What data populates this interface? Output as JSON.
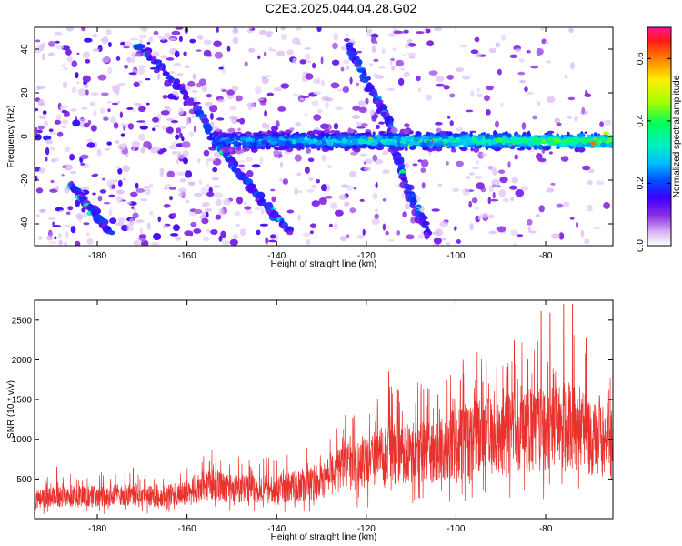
{
  "title": "C2E3.2025.044.04.28.G02",
  "colors": {
    "snr_line": "#e8322e",
    "axis": "#000000",
    "colormap": [
      "#ffffff",
      "#c8a0f0",
      "#8a2be2",
      "#4b00ff",
      "#0000ff",
      "#00bfff",
      "#00ff7f",
      "#7fff00",
      "#ffff00",
      "#ff8c00",
      "#ff0000",
      "#ff1493"
    ]
  },
  "chart_data": [
    {
      "type": "heatmap",
      "xlabel": "Height of straight line (km)",
      "ylabel": "Frequency (Hz)",
      "xlim": [
        -194,
        -65
      ],
      "ylim": [
        -50,
        50
      ],
      "x_ticks": [
        -180,
        -160,
        -140,
        -120,
        -100,
        -80
      ],
      "x_tick_labels": [
        "-180",
        "-160",
        "-140",
        "-120",
        "-100",
        "-80"
      ],
      "y_ticks": [
        -40,
        -20,
        0,
        20,
        40
      ],
      "y_tick_labels": [
        "-40",
        "-20",
        "0",
        "20",
        "40"
      ],
      "features": [
        {
          "name": "main band",
          "x_start": -154,
          "x_end": -65,
          "frequency": -2,
          "max_amplitude": 0.65
        },
        {
          "name": "descending trace 1",
          "points": [
            [
              -171,
              42
            ],
            [
              -161,
              22
            ],
            [
              -154,
              0
            ],
            [
              -150,
              -12
            ],
            [
              -144,
              -28
            ],
            [
              -137,
              -44
            ]
          ]
        },
        {
          "name": "descending trace 2",
          "points": [
            [
              -124,
              42
            ],
            [
              -119,
              22
            ],
            [
              -115,
              8
            ],
            [
              -113,
              -10
            ],
            [
              -110,
              -28
            ],
            [
              -106,
              -46
            ]
          ]
        },
        {
          "name": "lower left trace",
          "points": [
            [
              -186,
              -22
            ],
            [
              -182,
              -32
            ],
            [
              -177,
              -44
            ]
          ]
        }
      ],
      "colorbar": {
        "label": "Normalized spectral amplitude",
        "range": [
          0.0,
          0.7
        ],
        "ticks": [
          0.0,
          0.2,
          0.4,
          0.6
        ],
        "tick_labels": [
          "0.0",
          "0.2",
          "0.4",
          "0.6"
        ]
      }
    },
    {
      "type": "line",
      "xlabel": "Height of straight line (km)",
      "ylabel": "SNR (10 * v/v)",
      "xlim": [
        -194,
        -65
      ],
      "ylim": [
        0,
        2750
      ],
      "x_ticks": [
        -180,
        -160,
        -140,
        -120,
        -100,
        -80
      ],
      "x_tick_labels": [
        "-180",
        "-160",
        "-140",
        "-120",
        "-100",
        "-80"
      ],
      "y_ticks": [
        500,
        1000,
        1500,
        2000,
        2500
      ],
      "y_tick_labels": [
        "500",
        "1000",
        "1500",
        "2000",
        "2500"
      ],
      "series": [
        {
          "x": [
            -194,
            -190,
            -185,
            -180,
            -175,
            -170,
            -165,
            -160,
            -155,
            -150,
            -145,
            -140,
            -135,
            -130,
            -125,
            -120,
            -115,
            -110,
            -105,
            -100,
            -95,
            -90,
            -85,
            -80,
            -75,
            -70,
            -65
          ],
          "values": [
            210,
            230,
            250,
            240,
            260,
            240,
            250,
            270,
            380,
            320,
            330,
            310,
            360,
            400,
            550,
            620,
            700,
            720,
            700,
            820,
            880,
            900,
            950,
            980,
            1000,
            900,
            800
          ],
          "peaks": [
            [
              -189,
              650
            ],
            [
              -172,
              640
            ],
            [
              -155,
              720
            ],
            [
              -146,
              660
            ],
            [
              -140,
              720
            ],
            [
              -133,
              620
            ],
            [
              -128,
              760
            ],
            [
              -123,
              1270
            ],
            [
              -115,
              1850
            ],
            [
              -113,
              1620
            ],
            [
              -109,
              1450
            ],
            [
              -104,
              1560
            ],
            [
              -99,
              1740
            ],
            [
              -94,
              1720
            ],
            [
              -91,
              1880
            ],
            [
              -87,
              2240
            ],
            [
              -84,
              2000
            ],
            [
              -81,
              2610
            ],
            [
              -79,
              2590
            ],
            [
              -76,
              2700
            ],
            [
              -74,
              2700
            ],
            [
              -71,
              2280
            ],
            [
              -68,
              1550
            ],
            [
              -66,
              1450
            ]
          ]
        }
      ]
    }
  ]
}
